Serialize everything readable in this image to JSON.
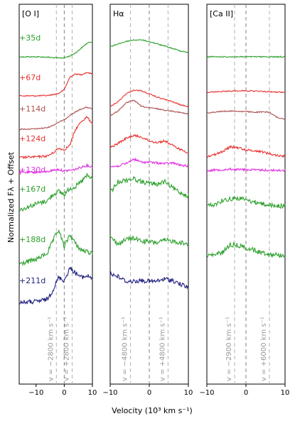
{
  "chart_data": {
    "type": "line",
    "title": "",
    "ylabel": "Normalized Fλ + Offset",
    "xlabel": "Velocity (10³ km s⁻¹)",
    "xticks": [
      "−10",
      "0",
      "10"
    ],
    "epochs": [
      {
        "label": "+35d",
        "color": "#2ca02c"
      },
      {
        "label": "+67d",
        "color": "#e8312f"
      },
      {
        "label": "+114d",
        "color": "#ad4f50"
      },
      {
        "label": "+124d",
        "color": "#e8312f"
      },
      {
        "label": "+130d",
        "color": "#e22fe2"
      },
      {
        "label": "+167d",
        "color": "#2ca02c"
      },
      {
        "label": "+188d",
        "color": "#2ca02c"
      },
      {
        "label": "+211d",
        "color": "#1f1f80"
      }
    ],
    "panels": [
      {
        "title": "[O I]",
        "xlim": [
          -16,
          10
        ],
        "velocity_labels": [
          "v = −2800 km s⁻¹",
          "v = +2800 km s⁻¹"
        ],
        "markers": [
          -2.8,
          0,
          2.8
        ],
        "series": [
          {
            "name": "+35d",
            "x": [
              -16,
              -10,
              -6,
              -4,
              -2,
              0,
              2,
              4,
              6,
              8,
              10
            ],
            "y": [
              0.0,
              0.0,
              -0.02,
              -0.06,
              -0.08,
              -0.06,
              0.05,
              0.25,
              0.55,
              0.85,
              1.0
            ]
          },
          {
            "name": "+67d",
            "x": [
              -16,
              -10,
              -6,
              -4,
              -2,
              0,
              2,
              4,
              6,
              8,
              10
            ],
            "y": [
              0.0,
              0.0,
              0.02,
              0.08,
              0.15,
              0.4,
              1.2,
              1.4,
              1.35,
              1.5,
              1.4
            ]
          },
          {
            "name": "+114d",
            "x": [
              -16,
              -10,
              -6,
              -4,
              -2,
              0,
              2,
              4,
              6,
              8,
              10
            ],
            "y": [
              0.0,
              0.02,
              0.1,
              0.25,
              0.45,
              0.6,
              0.9,
              1.1,
              1.3,
              1.4,
              1.3
            ]
          },
          {
            "name": "+124d",
            "x": [
              -16,
              -10,
              -6,
              -4,
              -2,
              0,
              2,
              4,
              6,
              8,
              10
            ],
            "y": [
              0.0,
              0.05,
              0.1,
              0.3,
              0.6,
              0.5,
              0.8,
              1.8,
              2.3,
              2.6,
              2.2
            ]
          },
          {
            "name": "+130d",
            "x": [
              -16,
              -10,
              -6,
              -4,
              -2,
              0,
              2,
              4,
              6,
              8,
              10
            ],
            "y": [
              0.0,
              0.02,
              0.05,
              0.15,
              0.2,
              0.1,
              0.15,
              0.2,
              0.35,
              0.45,
              0.35
            ]
          },
          {
            "name": "+167d",
            "x": [
              -16,
              -10,
              -6,
              -4,
              -2,
              0,
              2,
              4,
              6,
              8,
              10
            ],
            "y": [
              0.0,
              0.4,
              0.6,
              1.0,
              1.2,
              1.0,
              1.4,
              1.5,
              1.8,
              2.2,
              2.0
            ]
          },
          {
            "name": "+188d",
            "x": [
              -16,
              -10,
              -6,
              -4,
              -2,
              0,
              2,
              4,
              6,
              8,
              10
            ],
            "y": [
              0.0,
              0.3,
              0.7,
              1.5,
              2.2,
              1.1,
              1.9,
              1.3,
              0.9,
              0.8,
              0.7
            ]
          },
          {
            "name": "+211d",
            "x": [
              -16,
              -10,
              -6,
              -4,
              -2,
              0,
              2,
              4,
              6,
              8,
              10
            ],
            "y": [
              0.0,
              0.05,
              0.2,
              0.8,
              1.6,
              1.4,
              2.2,
              1.9,
              1.6,
              1.7,
              1.6
            ]
          }
        ]
      },
      {
        "title": "Hα",
        "xlim": [
          -10,
          10
        ],
        "velocity_labels": [
          "v = −4800 km s⁻¹",
          "v = +4800 km s⁻¹"
        ],
        "markers": [
          -4.8,
          0,
          4.8
        ],
        "series": [
          {
            "name": "+35d",
            "x": [
              -10,
              -8,
              -6,
              -4,
              -2,
              0,
              2,
              4,
              6,
              8,
              10
            ],
            "y": [
              0.4,
              0.6,
              0.75,
              0.85,
              0.85,
              0.75,
              0.6,
              0.45,
              0.3,
              0.15,
              0.05
            ]
          },
          {
            "name": "+67d",
            "x": [
              -10,
              -8,
              -6,
              -4,
              -2,
              0,
              2,
              4,
              6,
              8,
              10
            ],
            "y": [
              0.0,
              0.3,
              0.8,
              1.05,
              1.0,
              0.8,
              0.6,
              0.45,
              0.3,
              0.1,
              0.0
            ]
          },
          {
            "name": "+114d",
            "x": [
              -10,
              -8,
              -6,
              -4,
              -2,
              0,
              2,
              4,
              6,
              8,
              10
            ],
            "y": [
              0.0,
              0.3,
              0.8,
              1.0,
              0.6,
              0.5,
              0.45,
              0.35,
              0.3,
              0.2,
              0.1
            ]
          },
          {
            "name": "+124d",
            "x": [
              -10,
              -8,
              -6,
              -4,
              -2,
              0,
              2,
              4,
              6,
              8,
              10
            ],
            "y": [
              0.3,
              0.6,
              0.9,
              1.1,
              1.0,
              0.75,
              0.65,
              0.75,
              0.45,
              0.2,
              0.0
            ]
          },
          {
            "name": "+130d",
            "x": [
              -10,
              -8,
              -6,
              -4,
              -2,
              0,
              2,
              4,
              6,
              8,
              10
            ],
            "y": [
              0.0,
              0.05,
              0.2,
              0.5,
              0.3,
              0.3,
              0.25,
              0.2,
              0.25,
              0.1,
              0.05
            ]
          },
          {
            "name": "+167d",
            "x": [
              -10,
              -8,
              -6,
              -4,
              -2,
              0,
              2,
              4,
              6,
              8,
              10
            ],
            "y": [
              0.3,
              1.0,
              1.1,
              1.2,
              1.0,
              0.9,
              0.85,
              1.0,
              0.6,
              0.3,
              0.1
            ]
          },
          {
            "name": "+188d",
            "x": [
              -10,
              -8,
              -6,
              -4,
              -2,
              0,
              2,
              4,
              6,
              8,
              10
            ],
            "y": [
              1.0,
              0.5,
              0.8,
              0.9,
              0.7,
              0.65,
              0.6,
              0.75,
              0.7,
              0.6,
              0.5
            ]
          },
          {
            "name": "+211d",
            "x": [
              -10,
              -8,
              -6,
              -4,
              -2,
              0,
              2,
              4,
              6,
              8,
              10
            ],
            "y": [
              0.9,
              0.7,
              0.4,
              0.4,
              0.45,
              0.4,
              0.4,
              0.55,
              0.45,
              0.2,
              0.0
            ]
          }
        ]
      },
      {
        "title": "[Ca II]",
        "xlim": [
          -10,
          10
        ],
        "velocity_labels": [
          "v = −2900 km s⁻¹",
          "v = +6000 km s⁻¹"
        ],
        "markers": [
          -2.9,
          0,
          6.0
        ],
        "series": [
          {
            "name": "+35d",
            "x": [
              -10,
              -8,
              -6,
              -4,
              -2,
              0,
              2,
              4,
              6,
              8,
              10
            ],
            "y": [
              0.0,
              0.0,
              0.0,
              0.0,
              0.0,
              0.0,
              0.0,
              0.0,
              0.0,
              0.0,
              0.0
            ]
          },
          {
            "name": "+67d",
            "x": [
              -10,
              -8,
              -6,
              -4,
              -2,
              0,
              2,
              4,
              6,
              8,
              10
            ],
            "y": [
              0.0,
              0.02,
              0.05,
              0.08,
              0.1,
              0.1,
              0.08,
              0.06,
              0.03,
              0.01,
              0.0
            ]
          },
          {
            "name": "+114d",
            "x": [
              -10,
              -8,
              -6,
              -4,
              -2,
              0,
              2,
              4,
              6,
              8,
              10
            ],
            "y": [
              0.5,
              0.55,
              0.6,
              0.62,
              0.6,
              0.58,
              0.55,
              0.55,
              0.55,
              0.2,
              0.1
            ]
          },
          {
            "name": "+124d",
            "x": [
              -10,
              -8,
              -6,
              -4,
              -2,
              0,
              2,
              4,
              6,
              8,
              10
            ],
            "y": [
              0.0,
              0.1,
              0.3,
              0.6,
              0.55,
              0.4,
              0.35,
              0.3,
              0.15,
              0.05,
              0.0
            ]
          },
          {
            "name": "+130d",
            "x": [
              -10,
              -8,
              -6,
              -4,
              -2,
              0,
              2,
              4,
              6,
              8,
              10
            ],
            "y": [
              0.0,
              0.02,
              0.05,
              0.08,
              0.06,
              0.05,
              0.03,
              0.02,
              0.01,
              0.0,
              0.0
            ]
          },
          {
            "name": "+167d",
            "x": [
              -10,
              -8,
              -6,
              -4,
              -2,
              0,
              2,
              4,
              6,
              8,
              10
            ],
            "y": [
              0.0,
              0.1,
              0.35,
              0.45,
              0.5,
              0.4,
              0.25,
              0.15,
              0.05,
              0.0,
              0.0
            ]
          },
          {
            "name": "+188d",
            "x": [
              -10,
              -8,
              -6,
              -4,
              -2,
              0,
              2,
              4,
              6,
              8,
              10
            ],
            "y": [
              0.0,
              0.05,
              0.2,
              0.7,
              0.65,
              0.5,
              0.35,
              0.2,
              0.1,
              0.05,
              0.0
            ]
          }
        ]
      }
    ]
  }
}
